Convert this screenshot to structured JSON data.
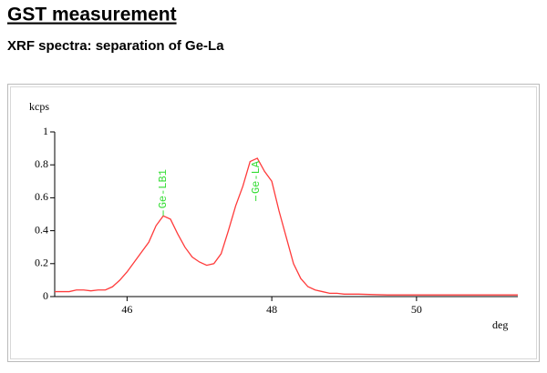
{
  "header": {
    "title": "GST measurement",
    "subtitle": "XRF spectra: separation of Ge-La"
  },
  "chart_data": {
    "type": "line",
    "y_label": "kcps",
    "x_label": "deg",
    "x": [
      45.0,
      45.1,
      45.2,
      45.3,
      45.4,
      45.5,
      45.6,
      45.7,
      45.8,
      45.9,
      46.0,
      46.1,
      46.2,
      46.3,
      46.4,
      46.5,
      46.6,
      46.7,
      46.8,
      46.9,
      47.0,
      47.1,
      47.2,
      47.3,
      47.4,
      47.5,
      47.6,
      47.7,
      47.8,
      47.9,
      48.0,
      48.1,
      48.2,
      48.3,
      48.4,
      48.5,
      48.6,
      48.7,
      48.8,
      48.9,
      49.0,
      49.2,
      49.4,
      49.6,
      49.8,
      50.0,
      50.2,
      50.4,
      50.6,
      50.8,
      51.0,
      51.4
    ],
    "series": [
      {
        "color": "#ff3b3b",
        "values": [
          0.03,
          0.03,
          0.03,
          0.04,
          0.04,
          0.035,
          0.04,
          0.04,
          0.06,
          0.1,
          0.15,
          0.21,
          0.27,
          0.33,
          0.43,
          0.49,
          0.47,
          0.38,
          0.3,
          0.24,
          0.21,
          0.19,
          0.2,
          0.26,
          0.4,
          0.55,
          0.67,
          0.82,
          0.84,
          0.76,
          0.7,
          0.52,
          0.36,
          0.2,
          0.11,
          0.06,
          0.04,
          0.03,
          0.02,
          0.02,
          0.015,
          0.015,
          0.012,
          0.01,
          0.01,
          0.01,
          0.01,
          0.01,
          0.01,
          0.01,
          0.01,
          0.01
        ]
      }
    ],
    "annotations": [
      {
        "text": "Ge-LB1",
        "x": 46.5,
        "y": 0.49,
        "color": "#33dd33"
      },
      {
        "text": "Ge-LA",
        "x": 47.78,
        "y": 0.58,
        "color": "#33dd33"
      }
    ],
    "xlim": [
      45,
      51.4
    ],
    "ylim": [
      0,
      1
    ],
    "xticks": [
      46,
      48,
      50
    ],
    "yticks": [
      0,
      0.2,
      0.4,
      0.6,
      0.8,
      1
    ]
  }
}
